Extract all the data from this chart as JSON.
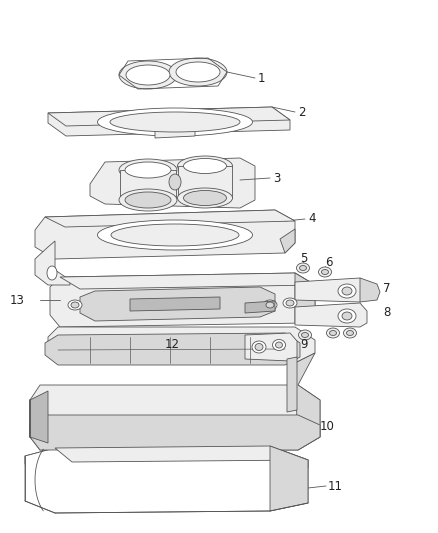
{
  "background_color": "#ffffff",
  "line_color": "#555555",
  "label_color": "#222222",
  "fill_white": "#ffffff",
  "fill_light": "#eeeeee",
  "fill_mid": "#d8d8d8",
  "fill_dark": "#bbbbbb",
  "lw": 0.6,
  "font_size": 8.5
}
